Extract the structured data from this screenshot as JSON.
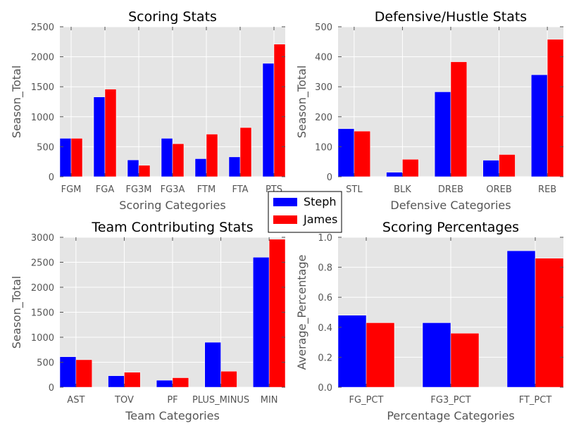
{
  "colors": {
    "steph": "#0000ff",
    "james": "#ff0000",
    "background": "#e5e5e5",
    "grid": "#ffffff"
  },
  "legend": {
    "entries": [
      "Steph",
      "James"
    ]
  },
  "chart_data": [
    {
      "type": "bar",
      "title": "Scoring Stats",
      "xlabel": "Scoring Categories",
      "ylabel": "Season_Total",
      "categories": [
        "FGM",
        "FGA",
        "FG3M",
        "FG3A",
        "FTM",
        "FTA",
        "PTS"
      ],
      "ylim": [
        0,
        2500
      ],
      "yticks": [
        "0",
        "500",
        "1000",
        "1500",
        "2000",
        "2500"
      ],
      "series": [
        {
          "name": "Steph",
          "values": [
            640,
            1330,
            280,
            640,
            300,
            330,
            1890
          ]
        },
        {
          "name": "James",
          "values": [
            640,
            1460,
            190,
            550,
            710,
            820,
            2210
          ]
        }
      ],
      "grid": true
    },
    {
      "type": "bar",
      "title": "Defensive/Hustle Stats",
      "xlabel": "Defensive Categories",
      "ylabel": "Season_Total",
      "categories": [
        "STL",
        "BLK",
        "DREB",
        "OREB",
        "REB"
      ],
      "ylim": [
        0,
        500
      ],
      "yticks": [
        "0",
        "100",
        "200",
        "300",
        "400",
        "500"
      ],
      "series": [
        {
          "name": "Steph",
          "values": [
            160,
            15,
            283,
            55,
            340
          ]
        },
        {
          "name": "James",
          "values": [
            152,
            58,
            383,
            74,
            458
          ]
        }
      ],
      "grid": true
    },
    {
      "type": "bar",
      "title": "Team Contributing Stats",
      "xlabel": "Team Categories",
      "ylabel": "Season_Total",
      "categories": [
        "AST",
        "TOV",
        "PF",
        "PLUS_MINUS",
        "MIN"
      ],
      "ylim": [
        0,
        3000
      ],
      "yticks": [
        "0",
        "500",
        "1000",
        "1500",
        "2000",
        "2500",
        "3000"
      ],
      "series": [
        {
          "name": "Steph",
          "values": [
            610,
            230,
            140,
            900,
            2600
          ]
        },
        {
          "name": "James",
          "values": [
            550,
            300,
            190,
            320,
            2960
          ]
        }
      ],
      "grid": true
    },
    {
      "type": "bar",
      "title": "Scoring Percentages",
      "xlabel": "Percentage Categories",
      "ylabel": "Average_Percentage",
      "categories": [
        "FG_PCT",
        "FG3_PCT",
        "FT_PCT"
      ],
      "ylim": [
        0,
        1.0
      ],
      "yticks": [
        "0.0",
        "0.2",
        "0.4",
        "0.6",
        "0.8",
        "1.0"
      ],
      "series": [
        {
          "name": "Steph",
          "values": [
            0.48,
            0.43,
            0.91
          ]
        },
        {
          "name": "James",
          "values": [
            0.43,
            0.36,
            0.86
          ]
        }
      ],
      "grid": true
    }
  ]
}
